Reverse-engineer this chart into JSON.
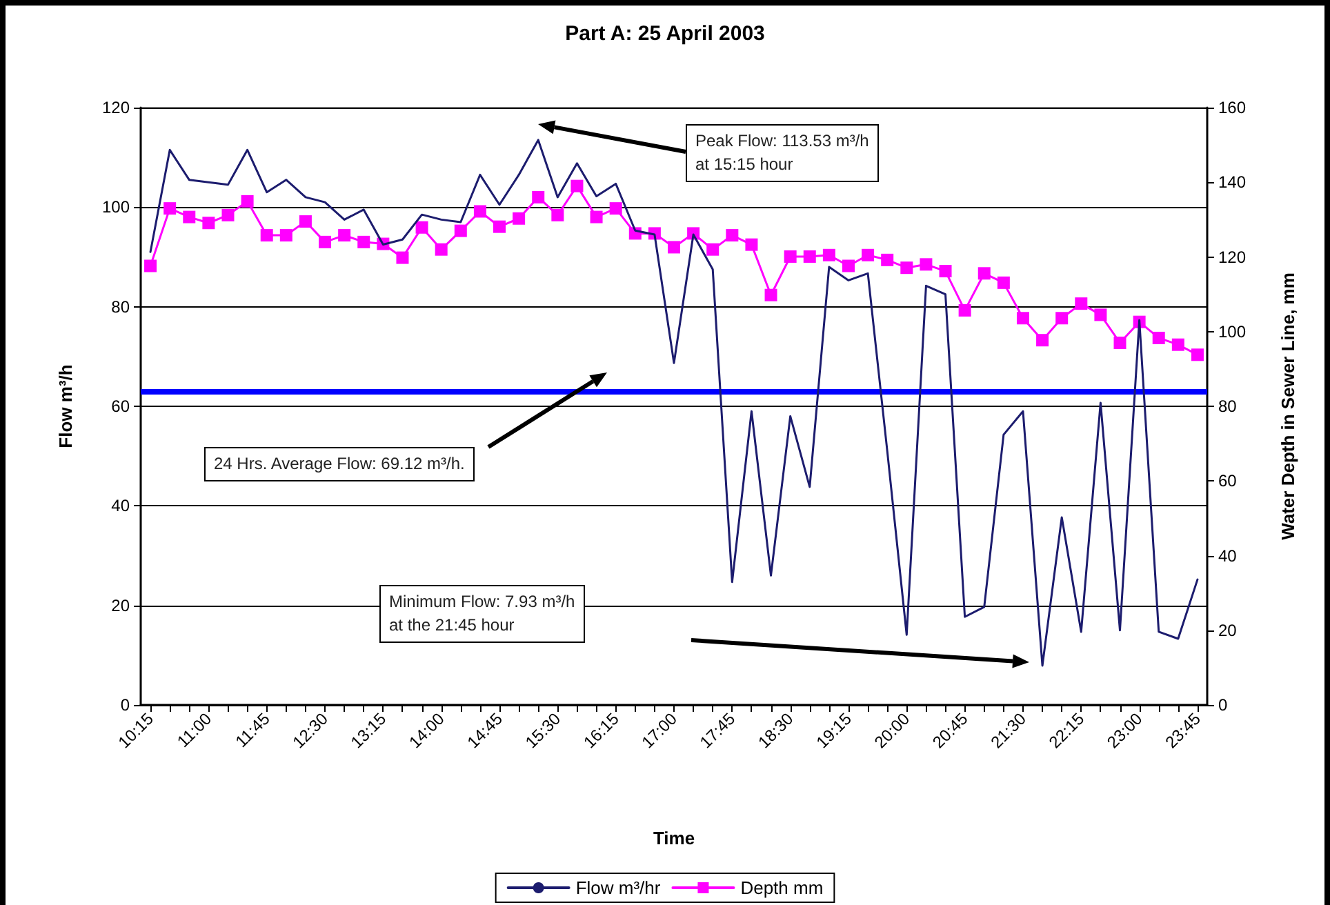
{
  "chart_data": {
    "type": "line",
    "title": "Part A: 25 April 2003",
    "xlabel": "Time",
    "ylabel": "Flow m³/h",
    "y2label": "Water Depth in Sewer Line, mm",
    "categories": [
      "10:15",
      null,
      null,
      "11:00",
      null,
      null,
      "11:45",
      null,
      null,
      "12:30",
      null,
      null,
      "13:15",
      null,
      null,
      "14:00",
      null,
      null,
      "14:45",
      null,
      null,
      "15:30",
      null,
      null,
      "16:15",
      null,
      null,
      "17:00",
      null,
      null,
      "17:45",
      null,
      null,
      "18:30",
      null,
      null,
      "19:15",
      null,
      null,
      "20:00",
      null,
      null,
      "20:45",
      null,
      null,
      "21:30",
      null,
      null,
      "22:15",
      null,
      null,
      "23:00",
      null,
      null,
      "23:45"
    ],
    "series": [
      {
        "name": "Flow m³/hr",
        "color": "#1c1c6e",
        "marker": "none",
        "values": [
          91,
          111.5,
          105.5,
          105,
          104.5,
          111.5,
          103,
          105.5,
          102,
          101,
          97.5,
          99.5,
          92.5,
          93.5,
          98.5,
          97.5,
          97,
          106.5,
          100.5,
          106.5,
          113.5,
          102,
          108.8,
          102.2,
          104.7,
          95.3,
          94.5,
          68.7,
          94.5,
          87.5,
          24.7,
          59,
          26,
          58,
          43.8,
          88,
          85.3,
          86.7,
          51,
          14.1,
          84.2,
          82.5,
          17.7,
          19.7,
          54.3,
          59,
          7.9,
          37.7,
          14.7,
          60.7,
          15,
          77.3,
          14.7,
          13.3,
          25.2
        ]
      },
      {
        "name": "Depth mm",
        "color": "#ff00ff",
        "marker": "square",
        "axis": "y2",
        "values": [
          117.6,
          133,
          130.7,
          129.1,
          131.2,
          134.9,
          125.8,
          125.8,
          129.5,
          124,
          125.8,
          124,
          123.5,
          119.8,
          127.9,
          122,
          127,
          132.2,
          128.1,
          130.3,
          136,
          131.2,
          139,
          130.7,
          133,
          126.3,
          126.3,
          122.6,
          126.3,
          122,
          125.8,
          123.3,
          109.8,
          120.1,
          120.1,
          120.5,
          117.6,
          120.5,
          119.2,
          117.1,
          118,
          116.2,
          105.7,
          115.6,
          113.1,
          103.6,
          97.7,
          103.6,
          107.5,
          104.5,
          97,
          102.6,
          98.3,
          96.5,
          93.8
        ]
      }
    ],
    "ylim": [
      0,
      120
    ],
    "yticks": [
      0,
      20,
      40,
      60,
      80,
      100,
      120
    ],
    "y2lim": [
      0,
      160
    ],
    "y2ticks": [
      0,
      20,
      40,
      60,
      80,
      100,
      120,
      140,
      160
    ],
    "ref_lines": [
      {
        "axis": "y",
        "value": 63,
        "color": "#0000ff"
      }
    ],
    "annotations": [
      "Peak Flow: 113.53 m³/h\nat 15:15 hour",
      "24 Hrs. Average Flow: 69.12 m³/h.",
      "Minimum Flow: 7.93 m³/h\nat the 21:45 hour"
    ],
    "grid": "y",
    "legend": "bottom",
    "line_style": "solid"
  }
}
